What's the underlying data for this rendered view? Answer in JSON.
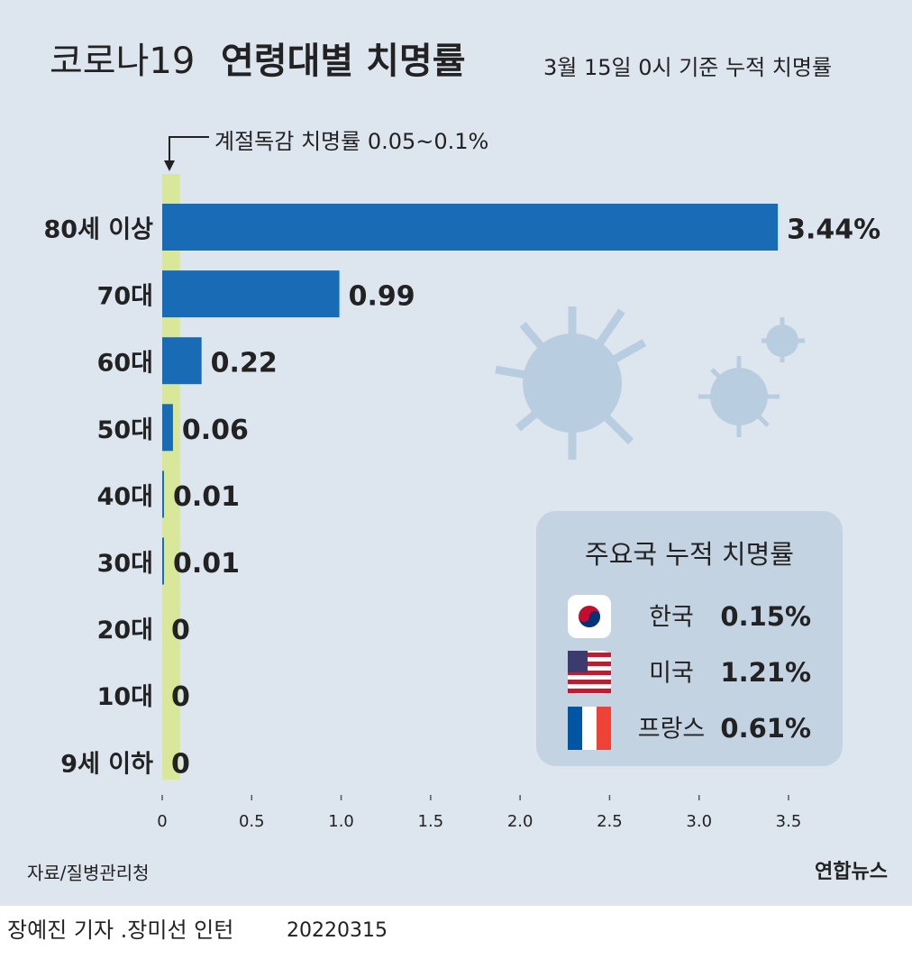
{
  "chart_data": {
    "type": "barh",
    "title": "코로나19",
    "title_emphasis": "연령대별 치명률",
    "subtitle": "3월 15일 0시 기준 누적 치명률",
    "annotation": "계절독감 치명률 0.05~0.1%",
    "band": [
      0.05,
      0.1
    ],
    "categories": [
      "80세 이상",
      "70대",
      "60대",
      "50대",
      "40대",
      "30대",
      "20대",
      "10대",
      "9세 이하"
    ],
    "values": [
      3.44,
      0.99,
      0.22,
      0.06,
      0.01,
      0.01,
      0,
      0,
      0
    ],
    "value_labels": [
      "3.44%",
      "0.99",
      "0.22",
      "0.06",
      "0.01",
      "0.01",
      "0",
      "0",
      "0"
    ],
    "color": "#1a6bb5",
    "xlim": [
      0,
      3.5
    ],
    "xticks": [
      0,
      0.5,
      {
        "value": 1,
        "label": "1.0"
      },
      1.5,
      {
        "value": 2,
        "label": "2.0"
      },
      2.5,
      {
        "value": 3,
        "label": "3.0"
      },
      3.5
    ],
    "inset": {
      "title": "주요국 누적 치명률",
      "countries": [
        {
          "name": "한국",
          "value": "0.15%"
        },
        {
          "name": "미국",
          "value": "1.21%"
        },
        {
          "name": "프랑스",
          "value": "0.61%"
        }
      ]
    },
    "source": "자료/질병관리청",
    "logo": "연합뉴스",
    "credit": "장예진 기자 .장미선 인턴",
    "date": "20220315"
  }
}
